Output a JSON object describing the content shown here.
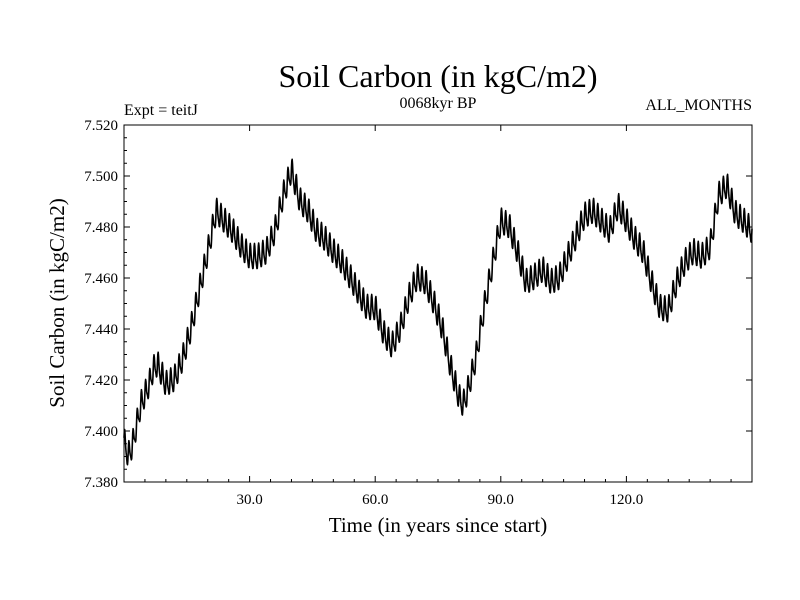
{
  "chart_data": {
    "type": "line",
    "title": "Soil Carbon (in kgC/m2)",
    "subtitle_left": "Expt = teitJ",
    "subtitle_center": "0068kyr BP",
    "subtitle_right": "ALL_MONTHS",
    "xlabel": "Time (in years since start)",
    "ylabel": "Soil Carbon (in kgC/m2)",
    "xlim": [
      0,
      150
    ],
    "ylim": [
      7.38,
      7.52
    ],
    "xticks": [
      30,
      60,
      90,
      120
    ],
    "xtick_labels": [
      "30.0",
      "60.0",
      "90.0",
      "120.0"
    ],
    "yticks": [
      7.38,
      7.4,
      7.42,
      7.44,
      7.46,
      7.48,
      7.5,
      7.52
    ],
    "ytick_labels": [
      "7.380",
      "7.400",
      "7.420",
      "7.440",
      "7.460",
      "7.480",
      "7.500",
      "7.520"
    ],
    "series": [
      {
        "name": "Soil Carbon",
        "seasonal_amplitude": 0.0045,
        "x": [
          0,
          1,
          2,
          3,
          4,
          5,
          6,
          7,
          8,
          10,
          12,
          14,
          16,
          18,
          20,
          21,
          22,
          24,
          26,
          28,
          30,
          32,
          34,
          36,
          38,
          40,
          42,
          44,
          46,
          48,
          50,
          52,
          54,
          56,
          58,
          60,
          62,
          64,
          66,
          68,
          70,
          72,
          74,
          76,
          78,
          80,
          81,
          82,
          84,
          86,
          88,
          90,
          92,
          94,
          96,
          98,
          100,
          102,
          104,
          106,
          108,
          110,
          112,
          114,
          116,
          118,
          120,
          122,
          124,
          126,
          128,
          130,
          132,
          134,
          136,
          138,
          140,
          142,
          144,
          146,
          148,
          150
        ],
        "values": [
          7.396,
          7.39,
          7.394,
          7.402,
          7.41,
          7.414,
          7.418,
          7.424,
          7.426,
          7.418,
          7.42,
          7.428,
          7.44,
          7.455,
          7.47,
          7.478,
          7.486,
          7.482,
          7.478,
          7.472,
          7.468,
          7.468,
          7.47,
          7.478,
          7.492,
          7.502,
          7.49,
          7.486,
          7.478,
          7.475,
          7.47,
          7.466,
          7.46,
          7.454,
          7.448,
          7.448,
          7.438,
          7.433,
          7.44,
          7.452,
          7.46,
          7.458,
          7.45,
          7.44,
          7.425,
          7.413,
          7.41,
          7.415,
          7.428,
          7.448,
          7.465,
          7.482,
          7.48,
          7.47,
          7.458,
          7.46,
          7.463,
          7.458,
          7.46,
          7.468,
          7.476,
          7.484,
          7.486,
          7.482,
          7.478,
          7.488,
          7.482,
          7.475,
          7.47,
          7.458,
          7.448,
          7.447,
          7.458,
          7.466,
          7.47,
          7.468,
          7.472,
          7.492,
          7.496,
          7.485,
          7.482,
          7.478
        ]
      }
    ]
  }
}
